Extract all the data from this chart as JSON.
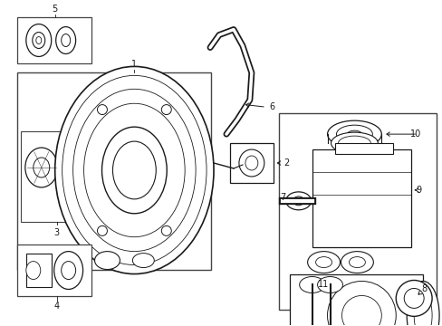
{
  "bg_color": "#ffffff",
  "line_color": "#1a1a1a",
  "box_line_color": "#444444",
  "fig_width": 4.89,
  "fig_height": 3.6,
  "dpi": 100
}
